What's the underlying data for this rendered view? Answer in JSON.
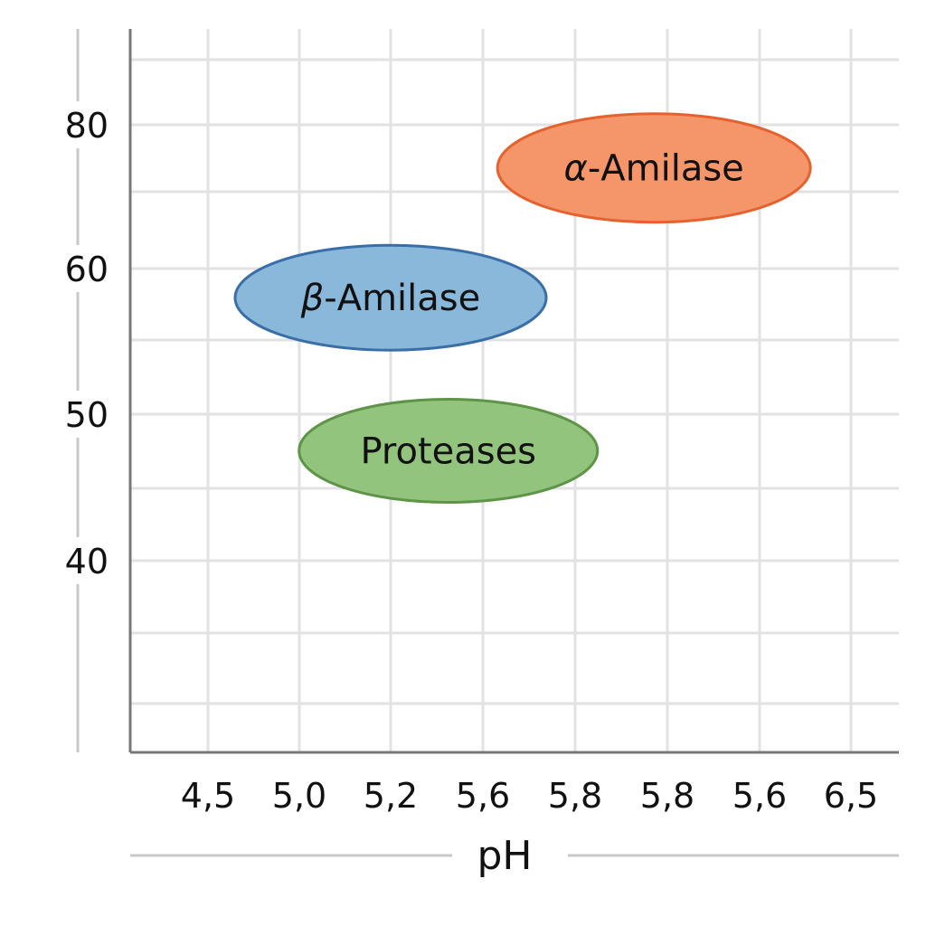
{
  "chart_data": {
    "type": "scatter",
    "title": "",
    "xlabel": "pH",
    "ylabel": "",
    "x_ticks": [
      "4,5",
      "5,0",
      "5,2",
      "5,6",
      "5,8",
      "5,8",
      "5,6",
      "6,5"
    ],
    "y_ticks": [
      80,
      60,
      50,
      40
    ],
    "grid": true,
    "series": [
      {
        "name": "α-Amilase",
        "greek": "α",
        "rest": "-Amilase",
        "x_center": 6.0,
        "y_center": 74.0,
        "color": "#F4956A",
        "stroke": "#E5622E"
      },
      {
        "name": "β-Amilase",
        "greek": "β",
        "rest": "-Amilase",
        "x_center": 5.2,
        "y_center": 58.0,
        "color": "#8AB8DA",
        "stroke": "#3A6EA8"
      },
      {
        "name": "Proteases",
        "greek": "",
        "rest": "Proteases",
        "x_center": 5.45,
        "y_center": 47.5,
        "color": "#93C47D",
        "stroke": "#5E9447"
      }
    ]
  }
}
